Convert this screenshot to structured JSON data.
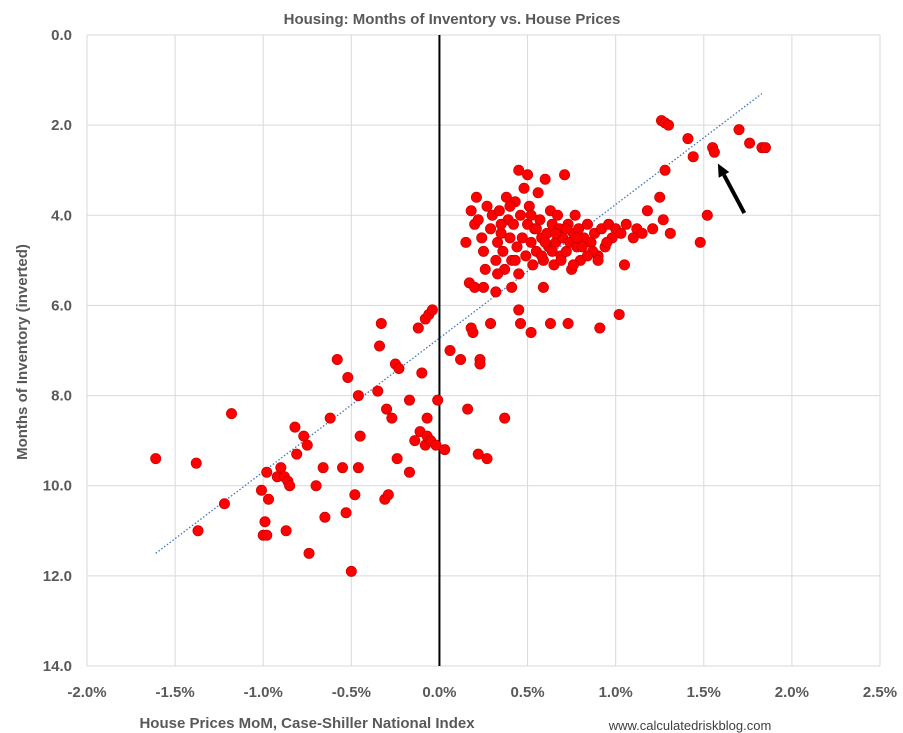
{
  "chart_data": {
    "type": "scatter",
    "title": "Housing: Months of Inventory vs. House Prices",
    "xlabel": "House Prices MoM, Case-Shiller National Index",
    "ylabel": "Months of Inventory (inverted)",
    "source": "www.calculatedriskblog.com",
    "xlim": [
      -0.02,
      0.025
    ],
    "ylim": [
      0,
      14
    ],
    "y_inverted": true,
    "grid": true,
    "x_ticks": [
      -0.02,
      -0.015,
      -0.01,
      -0.005,
      0.0,
      0.005,
      0.01,
      0.015,
      0.02,
      0.025
    ],
    "x_tick_labels": [
      "-2.0%",
      "-1.5%",
      "-1.0%",
      "-0.5%",
      "0.0%",
      "0.5%",
      "1.0%",
      "1.5%",
      "2.0%",
      "2.5%"
    ],
    "y_ticks": [
      0,
      2,
      4,
      6,
      8,
      10,
      12,
      14
    ],
    "y_tick_labels": [
      "0.0",
      "2.0",
      "4.0",
      "6.0",
      "8.0",
      "10.0",
      "12.0",
      "14.0"
    ],
    "marker_color": "#ff0000",
    "trendline": {
      "style": "dotted",
      "color": "#4472c4",
      "x": [
        -0.0161,
        0.0183
      ],
      "y": [
        11.5,
        1.3
      ]
    },
    "zero_line": {
      "x": 0.0,
      "color": "#000000"
    },
    "arrow": {
      "from": [
        0.0173,
        3.95
      ],
      "to": [
        0.0158,
        2.85
      ],
      "color": "#000000"
    },
    "points": [
      [
        -0.0161,
        9.4
      ],
      [
        -0.0138,
        9.5
      ],
      [
        -0.0137,
        11.0
      ],
      [
        -0.0122,
        10.4
      ],
      [
        -0.0118,
        8.4
      ],
      [
        -0.0101,
        10.1
      ],
      [
        -0.01,
        11.1
      ],
      [
        -0.0099,
        10.8
      ],
      [
        -0.0098,
        9.7
      ],
      [
        -0.0098,
        11.1
      ],
      [
        -0.0097,
        10.3
      ],
      [
        -0.0092,
        9.8
      ],
      [
        -0.009,
        9.6
      ],
      [
        -0.0088,
        9.8
      ],
      [
        -0.0087,
        11.0
      ],
      [
        -0.0086,
        9.9
      ],
      [
        -0.0085,
        10.0
      ],
      [
        -0.0082,
        8.7
      ],
      [
        -0.0081,
        9.3
      ],
      [
        -0.0077,
        8.9
      ],
      [
        -0.0075,
        9.1
      ],
      [
        -0.0074,
        11.5
      ],
      [
        -0.007,
        10.0
      ],
      [
        -0.0066,
        9.6
      ],
      [
        -0.0065,
        10.7
      ],
      [
        -0.0062,
        8.5
      ],
      [
        -0.0058,
        7.2
      ],
      [
        -0.0055,
        9.6
      ],
      [
        -0.0053,
        10.6
      ],
      [
        -0.0052,
        7.6
      ],
      [
        -0.005,
        11.9
      ],
      [
        -0.0048,
        10.2
      ],
      [
        -0.0046,
        8.0
      ],
      [
        -0.0045,
        8.9
      ],
      [
        -0.0046,
        9.6
      ],
      [
        -0.0035,
        7.9
      ],
      [
        -0.0034,
        6.9
      ],
      [
        -0.0033,
        6.4
      ],
      [
        -0.0031,
        10.3
      ],
      [
        -0.0029,
        10.2
      ],
      [
        -0.003,
        8.3
      ],
      [
        -0.0027,
        8.5
      ],
      [
        -0.0025,
        7.3
      ],
      [
        -0.0024,
        9.4
      ],
      [
        -0.0023,
        7.4
      ],
      [
        -0.0017,
        9.7
      ],
      [
        -0.0017,
        8.1
      ],
      [
        -0.0014,
        9.0
      ],
      [
        -0.0012,
        6.5
      ],
      [
        -0.0011,
        8.8
      ],
      [
        -0.001,
        7.5
      ],
      [
        -0.0008,
        6.3
      ],
      [
        -0.0006,
        6.2
      ],
      [
        -0.0004,
        6.1
      ],
      [
        -0.0008,
        9.1
      ],
      [
        -0.0007,
        8.5
      ],
      [
        -0.0007,
        8.9
      ],
      [
        -0.0005,
        9.0
      ],
      [
        -0.0002,
        9.1
      ],
      [
        -0.0001,
        8.1
      ],
      [
        0.0003,
        9.2
      ],
      [
        0.0006,
        7.0
      ],
      [
        0.0012,
        7.2
      ],
      [
        0.0016,
        8.3
      ],
      [
        0.0018,
        6.5
      ],
      [
        0.0019,
        6.6
      ],
      [
        0.0022,
        9.3
      ],
      [
        0.0023,
        7.2
      ],
      [
        0.0023,
        7.3
      ],
      [
        0.0027,
        9.4
      ],
      [
        0.0029,
        6.4
      ],
      [
        0.0037,
        8.5
      ],
      [
        0.0045,
        6.1
      ],
      [
        0.0046,
        6.4
      ],
      [
        0.0052,
        6.6
      ],
      [
        0.0063,
        6.4
      ],
      [
        0.0073,
        6.4
      ],
      [
        0.0091,
        6.5
      ],
      [
        0.0102,
        6.2
      ],
      [
        0.0017,
        5.5
      ],
      [
        0.002,
        5.6
      ],
      [
        0.0025,
        5.6
      ],
      [
        0.0032,
        5.7
      ],
      [
        0.0041,
        5.6
      ],
      [
        0.0059,
        5.6
      ],
      [
        0.0015,
        4.6
      ],
      [
        0.0018,
        3.9
      ],
      [
        0.002,
        4.2
      ],
      [
        0.0021,
        3.6
      ],
      [
        0.0022,
        4.1
      ],
      [
        0.0024,
        4.5
      ],
      [
        0.0025,
        4.8
      ],
      [
        0.0027,
        3.8
      ],
      [
        0.0029,
        4.3
      ],
      [
        0.003,
        4.0
      ],
      [
        0.0032,
        5.0
      ],
      [
        0.0033,
        4.6
      ],
      [
        0.0034,
        3.9
      ],
      [
        0.0035,
        4.4
      ],
      [
        0.0036,
        4.8
      ],
      [
        0.0037,
        5.2
      ],
      [
        0.0038,
        3.6
      ],
      [
        0.0039,
        4.1
      ],
      [
        0.004,
        4.5
      ],
      [
        0.0041,
        5.0
      ],
      [
        0.0042,
        4.2
      ],
      [
        0.0043,
        3.7
      ],
      [
        0.0044,
        4.7
      ],
      [
        0.0045,
        5.3
      ],
      [
        0.0046,
        4.0
      ],
      [
        0.0047,
        4.5
      ],
      [
        0.0048,
        3.4
      ],
      [
        0.0049,
        4.9
      ],
      [
        0.005,
        4.2
      ],
      [
        0.0051,
        3.8
      ],
      [
        0.0052,
        4.6
      ],
      [
        0.0053,
        5.1
      ],
      [
        0.0054,
        4.3
      ],
      [
        0.0055,
        4.8
      ],
      [
        0.0056,
        3.5
      ],
      [
        0.0057,
        4.1
      ],
      [
        0.0058,
        4.5
      ],
      [
        0.0059,
        5.0
      ],
      [
        0.006,
        3.2
      ],
      [
        0.0061,
        4.4
      ],
      [
        0.0062,
        4.7
      ],
      [
        0.0063,
        3.9
      ],
      [
        0.0064,
        4.2
      ],
      [
        0.0065,
        5.1
      ],
      [
        0.0066,
        4.6
      ],
      [
        0.0067,
        4.0
      ],
      [
        0.0068,
        4.3
      ],
      [
        0.0069,
        4.9
      ],
      [
        0.007,
        4.5
      ],
      [
        0.0071,
        3.1
      ],
      [
        0.0072,
        4.8
      ],
      [
        0.0073,
        4.2
      ],
      [
        0.0074,
        4.6
      ],
      [
        0.0075,
        5.2
      ],
      [
        0.0076,
        4.4
      ],
      [
        0.0077,
        4.0
      ],
      [
        0.0078,
        4.7
      ],
      [
        0.0079,
        4.3
      ],
      [
        0.008,
        5.0
      ],
      [
        0.0082,
        4.5
      ],
      [
        0.0084,
        4.2
      ],
      [
        0.0086,
        4.6
      ],
      [
        0.0088,
        4.4
      ],
      [
        0.009,
        4.9
      ],
      [
        0.0092,
        4.3
      ],
      [
        0.0094,
        4.7
      ],
      [
        0.0096,
        4.2
      ],
      [
        0.0098,
        4.5
      ],
      [
        0.01,
        4.3
      ],
      [
        0.0103,
        4.4
      ],
      [
        0.0106,
        4.2
      ],
      [
        0.011,
        4.5
      ],
      [
        0.0112,
        4.3
      ],
      [
        0.0115,
        4.4
      ],
      [
        0.0118,
        3.9
      ],
      [
        0.0121,
        4.3
      ],
      [
        0.0125,
        3.6
      ],
      [
        0.0127,
        4.1
      ],
      [
        0.0128,
        3.0
      ],
      [
        0.0131,
        4.4
      ],
      [
        0.0126,
        1.9
      ],
      [
        0.0128,
        1.95
      ],
      [
        0.013,
        2.0
      ],
      [
        0.0141,
        2.3
      ],
      [
        0.0144,
        2.7
      ],
      [
        0.0148,
        4.6
      ],
      [
        0.0152,
        4.0
      ],
      [
        0.0155,
        2.5
      ],
      [
        0.0156,
        2.6
      ],
      [
        0.017,
        2.1
      ],
      [
        0.0176,
        2.4
      ],
      [
        0.0183,
        2.5
      ],
      [
        0.0185,
        2.5
      ],
      [
        0.0105,
        5.1
      ],
      [
        0.009,
        5.0
      ],
      [
        0.0045,
        3.0
      ],
      [
        0.005,
        3.1
      ],
      [
        0.0026,
        5.2
      ],
      [
        0.0033,
        5.3
      ],
      [
        0.0043,
        5.0
      ],
      [
        0.0058,
        4.9
      ],
      [
        0.0064,
        4.8
      ],
      [
        0.0069,
        5.0
      ],
      [
        0.0076,
        5.1
      ],
      [
        0.0081,
        4.7
      ],
      [
        0.0087,
        4.8
      ],
      [
        0.0095,
        4.6
      ],
      [
        0.0055,
        4.3
      ],
      [
        0.006,
        4.6
      ],
      [
        0.0035,
        4.2
      ],
      [
        0.004,
        3.8
      ],
      [
        0.0052,
        4.0
      ],
      [
        0.0066,
        4.4
      ],
      [
        0.0072,
        4.3
      ],
      [
        0.0078,
        4.5
      ],
      [
        0.0084,
        4.9
      ]
    ]
  }
}
